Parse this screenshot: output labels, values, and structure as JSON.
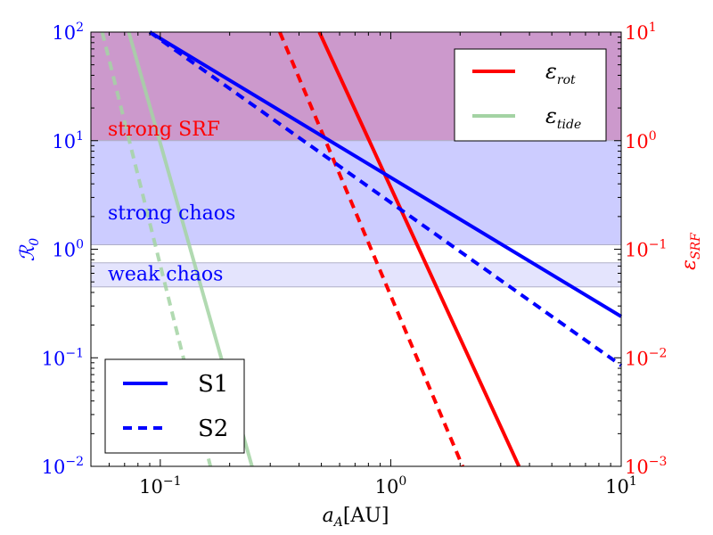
{
  "chart_data": {
    "type": "line",
    "xlabel_main": "a",
    "xlabel_sub": "A",
    "xlabel_unit": "[AU]",
    "xscale": "log",
    "xlim": [
      0.05,
      10
    ],
    "x_ticks": [
      {
        "base": "10",
        "exp": "−1"
      },
      {
        "base": "10",
        "exp": "0"
      },
      {
        "base": "10",
        "exp": "1"
      }
    ],
    "ylabel_left_main": "ℛ",
    "ylabel_left_sub": "0",
    "yscale_left": "log",
    "ylim_left": [
      0.01,
      100
    ],
    "y_ticks_left": [
      {
        "base": "10",
        "exp": "−2"
      },
      {
        "base": "10",
        "exp": "−1"
      },
      {
        "base": "10",
        "exp": "0"
      },
      {
        "base": "10",
        "exp": "1"
      },
      {
        "base": "10",
        "exp": "2"
      }
    ],
    "ylabel_right_main": "ε",
    "ylabel_right_sub": "SRF",
    "yscale_right": "log",
    "ylim_right": [
      0.001,
      10
    ],
    "y_ticks_right": [
      {
        "base": "10",
        "exp": "−3"
      },
      {
        "base": "10",
        "exp": "−2"
      },
      {
        "base": "10",
        "exp": "−1"
      },
      {
        "base": "10",
        "exp": "0"
      },
      {
        "base": "10",
        "exp": "1"
      }
    ],
    "regions": [
      {
        "label": "strong SRF",
        "y_from": 10,
        "y_to": 100,
        "color": "#cc99cc",
        "label_color": "#ff0000"
      },
      {
        "label": "strong chaos",
        "y_from": 1.1,
        "y_to": 10,
        "color": "#ccccff",
        "label_color": "#0000ff"
      },
      {
        "label": "weak chaos",
        "y_from": 0.45,
        "y_to": 0.75,
        "color": "#e4e4fd",
        "label_color": "#0000ff"
      }
    ],
    "series": [
      {
        "name": "S1 ℛ0",
        "axis": "left",
        "color": "#0000ff",
        "dash": "solid",
        "x": [
          0.09,
          10
        ],
        "y": [
          100,
          0.24
        ]
      },
      {
        "name": "S2 ℛ0",
        "axis": "left",
        "color": "#0000ff",
        "dash": "dashed",
        "x": [
          0.09,
          10
        ],
        "y": [
          100,
          0.085
        ]
      },
      {
        "name": "S1 εrot",
        "axis": "right",
        "color": "#ff0000",
        "dash": "solid",
        "x": [
          0.49,
          3.6
        ],
        "y": [
          10,
          0.001
        ]
      },
      {
        "name": "S2 εrot",
        "axis": "right",
        "color": "#ff0000",
        "dash": "dashed",
        "x": [
          0.33,
          2.05
        ],
        "y": [
          10,
          0.001
        ]
      },
      {
        "name": "S1 εtide",
        "axis": "right",
        "color": "#a3d3a3",
        "dash": "solid",
        "x": [
          0.073,
          0.25
        ],
        "y": [
          10,
          0.001
        ]
      },
      {
        "name": "S2 εtide",
        "axis": "right",
        "color": "#a3d3a3",
        "dash": "dashed",
        "x": [
          0.056,
          0.165
        ],
        "y": [
          10,
          0.001
        ]
      }
    ],
    "legend_top_right": [
      {
        "main": "ε",
        "sub": "rot",
        "color": "#ff0000"
      },
      {
        "main": "ε",
        "sub": "tide",
        "color": "#a3d3a3"
      }
    ],
    "legend_bottom_left": [
      {
        "label": "S1",
        "dash": "solid",
        "color": "#0000ff"
      },
      {
        "label": "S2",
        "dash": "dashed",
        "color": "#0000ff"
      }
    ]
  }
}
